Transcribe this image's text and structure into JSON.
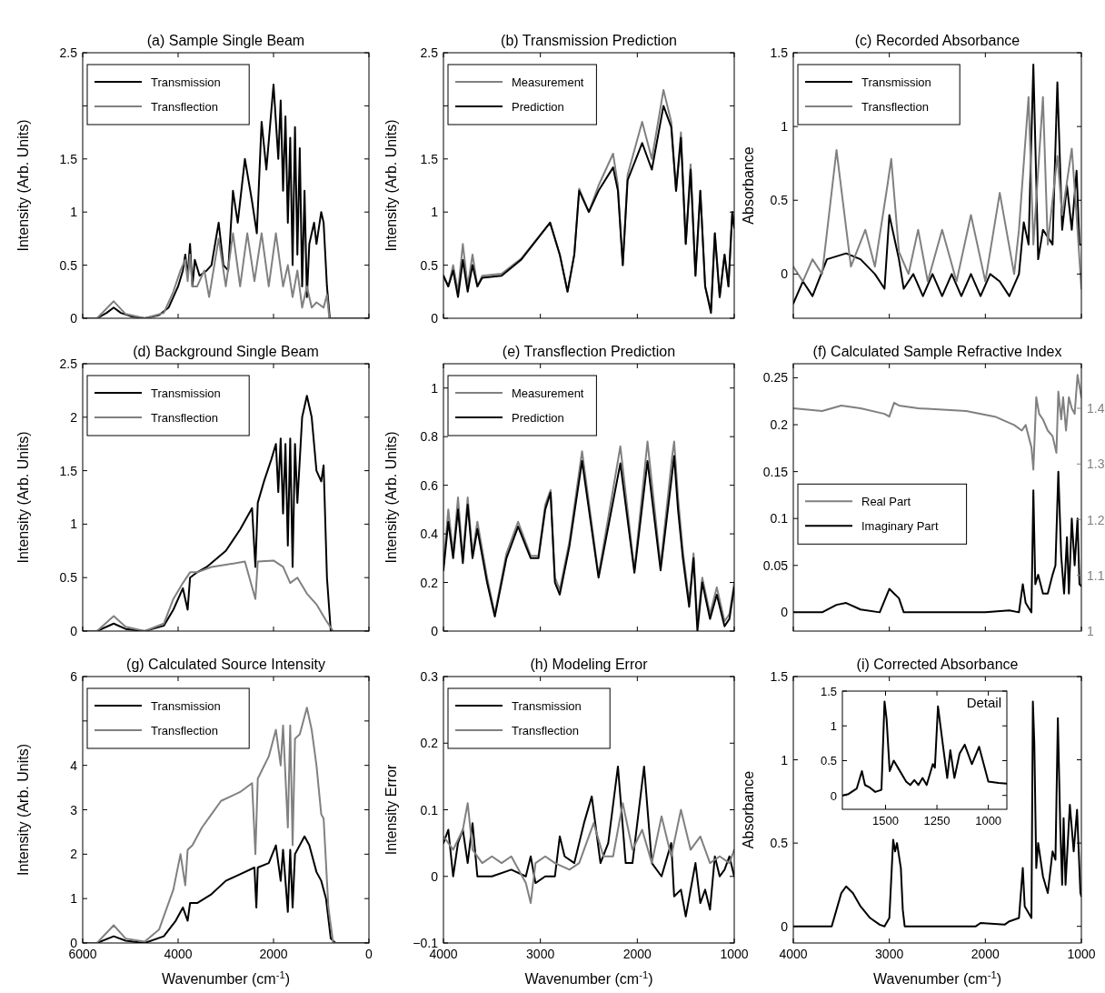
{
  "chart_data": [
    {
      "type": "line",
      "title": "(a) Sample Single Beam",
      "ylabel": "Intensity (Arb. Units)",
      "xlim": [
        6000,
        0
      ],
      "ylim": [
        0,
        2.5
      ],
      "xticks": [
        6000,
        4000,
        2000,
        0
      ],
      "yticks": [
        0,
        0.5,
        1,
        1.5,
        {
          "value": 2,
          "label": null
        },
        2.5
      ],
      "tick_labels": "y",
      "legend": "top left",
      "series": [
        {
          "name": "Transmission",
          "color": "#000000",
          "x": [
            6000,
            5700,
            5500,
            5350,
            5200,
            5000,
            4700,
            4400,
            4200,
            4000,
            3900,
            3850,
            3800,
            3750,
            3700,
            3650,
            3550,
            3400,
            3300,
            3150,
            3050,
            2950,
            2850,
            2750,
            2600,
            2450,
            2350,
            2250,
            2150,
            2000,
            1900,
            1850,
            1800,
            1750,
            1700,
            1650,
            1600,
            1550,
            1500,
            1450,
            1400,
            1350,
            1300,
            1250,
            1150,
            1100,
            1000,
            950,
            880,
            820,
            0
          ],
          "values": [
            0,
            0,
            0.05,
            0.1,
            0.05,
            0.02,
            0,
            0.03,
            0.1,
            0.3,
            0.45,
            0.6,
            0.4,
            0.7,
            0.3,
            0.55,
            0.4,
            0.45,
            0.5,
            0.9,
            0.5,
            0.45,
            1.2,
            0.9,
            1.5,
            1.1,
            0.8,
            1.85,
            1.4,
            2.2,
            1.5,
            2.05,
            1.2,
            1.9,
            0.9,
            1.7,
            0.5,
            1.8,
            0.6,
            1.6,
            0.3,
            1.2,
            0.2,
            0.7,
            0.9,
            0.7,
            1.0,
            0.9,
            0.3,
            0,
            0
          ]
        },
        {
          "name": "Transflection",
          "color": "#808080",
          "x": [
            6000,
            5700,
            5350,
            5100,
            4700,
            4300,
            4100,
            3950,
            3850,
            3800,
            3750,
            3700,
            3600,
            3450,
            3350,
            3150,
            3000,
            2850,
            2700,
            2550,
            2400,
            2250,
            2100,
            1950,
            1800,
            1700,
            1600,
            1500,
            1400,
            1300,
            1200,
            1100,
            950,
            880,
            830,
            0
          ],
          "values": [
            0,
            0,
            0.16,
            0.04,
            0,
            0.05,
            0.25,
            0.45,
            0.55,
            0.35,
            0.6,
            0.3,
            0.3,
            0.45,
            0.2,
            0.75,
            0.3,
            0.8,
            0.3,
            0.8,
            0.35,
            0.8,
            0.3,
            0.8,
            0.3,
            0.5,
            0.2,
            0.45,
            0.1,
            0.3,
            0.1,
            0.15,
            0.1,
            0.22,
            0,
            0
          ]
        }
      ]
    },
    {
      "type": "line",
      "title": "(b) Transmission Prediction",
      "ylabel": "Intensity (Arb. Units)",
      "xlim": [
        4000,
        1000
      ],
      "ylim": [
        0,
        2.5
      ],
      "xticks": [
        4000,
        3000,
        2000,
        1000
      ],
      "yticks": [
        0,
        0.5,
        1,
        1.5,
        {
          "value": 2,
          "label": null
        },
        2.5
      ],
      "tick_labels": "y",
      "legend": "top left",
      "series": [
        {
          "name": "Measurement",
          "color": "#808080",
          "x": [
            4000,
            3950,
            3900,
            3850,
            3800,
            3750,
            3700,
            3650,
            3600,
            3400,
            3200,
            2900,
            2800,
            2720,
            2650,
            2600,
            2500,
            2400,
            2250,
            2200,
            2150,
            2100,
            1950,
            1850,
            1730,
            1650,
            1600,
            1550,
            1500,
            1450,
            1400,
            1350,
            1300,
            1240,
            1200,
            1150,
            1100,
            1060,
            1020,
            1000
          ],
          "values": [
            0.4,
            0.3,
            0.5,
            0.25,
            0.7,
            0.3,
            0.6,
            0.3,
            0.4,
            0.42,
            0.56,
            0.9,
            0.6,
            0.25,
            0.6,
            1.22,
            1.0,
            1.25,
            1.55,
            1.25,
            0.5,
            1.35,
            1.85,
            1.5,
            2.15,
            1.85,
            1.2,
            1.75,
            0.7,
            1.45,
            0.4,
            1.2,
            0.3,
            0.08,
            0.8,
            0.2,
            0.6,
            0.3,
            1.0,
            0.85
          ]
        },
        {
          "name": "Prediction",
          "color": "#000000",
          "x": [
            4000,
            3950,
            3900,
            3850,
            3800,
            3750,
            3700,
            3650,
            3600,
            3400,
            3200,
            2900,
            2800,
            2720,
            2650,
            2600,
            2500,
            2400,
            2250,
            2200,
            2150,
            2100,
            1950,
            1850,
            1730,
            1650,
            1600,
            1550,
            1500,
            1450,
            1400,
            1350,
            1300,
            1240,
            1200,
            1150,
            1100,
            1060,
            1020,
            1000
          ],
          "values": [
            0.4,
            0.3,
            0.45,
            0.2,
            0.55,
            0.25,
            0.5,
            0.3,
            0.38,
            0.4,
            0.55,
            0.9,
            0.6,
            0.25,
            0.6,
            1.2,
            1.0,
            1.2,
            1.42,
            1.2,
            0.5,
            1.3,
            1.65,
            1.4,
            2.0,
            1.8,
            1.2,
            1.7,
            0.7,
            1.4,
            0.4,
            1.2,
            0.3,
            0.05,
            0.8,
            0.2,
            0.6,
            0.3,
            1.0,
            0.85
          ]
        }
      ]
    },
    {
      "type": "line",
      "title": "(c) Recorded Absorbance",
      "ylabel": "Absorbance",
      "xlim": [
        4000,
        1000
      ],
      "ylim": [
        -0.3,
        1.5
      ],
      "xticks": [
        4000,
        3000,
        2000,
        1000
      ],
      "yticks": [
        0,
        0.5,
        1,
        1.5
      ],
      "tick_labels": "y",
      "legend": "top left",
      "series": [
        {
          "name": "Transmission",
          "color": "#000000",
          "x": [
            4000,
            3900,
            3800,
            3650,
            3450,
            3300,
            3150,
            3050,
            3000,
            2950,
            2900,
            2850,
            2750,
            2650,
            2550,
            2450,
            2350,
            2250,
            2150,
            2050,
            1950,
            1850,
            1750,
            1650,
            1600,
            1550,
            1500,
            1450,
            1400,
            1300,
            1250,
            1200,
            1150,
            1100,
            1050,
            1020,
            1000
          ],
          "values": [
            -0.2,
            -0.05,
            -0.15,
            0.1,
            0.14,
            0.1,
            0.0,
            -0.1,
            0.4,
            0.25,
            0.1,
            -0.1,
            0.0,
            -0.15,
            0.0,
            -0.15,
            0.0,
            -0.15,
            0.0,
            -0.15,
            0.0,
            -0.05,
            -0.15,
            0.0,
            0.35,
            0.2,
            1.42,
            0.1,
            0.3,
            0.2,
            1.3,
            0.3,
            0.6,
            0.3,
            0.7,
            0.2,
            0.2
          ]
        },
        {
          "name": "Transflection",
          "color": "#808080",
          "x": [
            4000,
            3900,
            3800,
            3700,
            3550,
            3400,
            3250,
            3150,
            3020,
            2980,
            2900,
            2800,
            2700,
            2600,
            2450,
            2300,
            2150,
            2000,
            1850,
            1700,
            1650,
            1550,
            1500,
            1400,
            1350,
            1250,
            1200,
            1100,
            1050,
            1000
          ],
          "values": [
            0.05,
            -0.05,
            0.1,
            0.0,
            0.84,
            0.05,
            0.3,
            0.05,
            0.6,
            0.78,
            0.15,
            0.0,
            0.3,
            -0.05,
            0.3,
            -0.05,
            0.4,
            -0.05,
            0.55,
            0.0,
            0.3,
            1.2,
            0.2,
            1.2,
            0.2,
            0.8,
            0.4,
            0.85,
            0.4,
            -0.1
          ]
        }
      ]
    },
    {
      "type": "line",
      "title": "(d) Background Single Beam",
      "ylabel": "Intensity (Arb. Units)",
      "xlim": [
        6000,
        0
      ],
      "ylim": [
        0,
        2.5
      ],
      "xticks": [
        6000,
        4000,
        2000,
        0
      ],
      "yticks": [
        0,
        0.5,
        1,
        1.5,
        2,
        2.5
      ],
      "tick_labels": "y",
      "legend": "top left",
      "series": [
        {
          "name": "Transmission",
          "color": "#000000",
          "x": [
            6000,
            5700,
            5350,
            5100,
            4700,
            4300,
            4100,
            3900,
            3800,
            3750,
            3600,
            3400,
            3000,
            2700,
            2450,
            2380,
            2330,
            2200,
            2050,
            1950,
            1900,
            1850,
            1800,
            1750,
            1700,
            1650,
            1600,
            1550,
            1500,
            1400,
            1300,
            1200,
            1100,
            1000,
            950,
            880,
            800,
            0
          ],
          "values": [
            0,
            0,
            0.07,
            0.02,
            0,
            0.05,
            0.2,
            0.4,
            0.2,
            0.5,
            0.55,
            0.6,
            0.75,
            0.95,
            1.15,
            0.6,
            1.2,
            1.4,
            1.6,
            1.75,
            1.3,
            1.8,
            1.1,
            1.75,
            0.8,
            1.8,
            0.6,
            1.75,
            1.2,
            2.0,
            2.2,
            2.0,
            1.5,
            1.4,
            1.55,
            0.5,
            0,
            0
          ]
        },
        {
          "name": "Transflection",
          "color": "#808080",
          "x": [
            6000,
            5700,
            5350,
            5100,
            4700,
            4300,
            4100,
            3900,
            3750,
            3600,
            3300,
            3000,
            2600,
            2380,
            2330,
            2000,
            1800,
            1650,
            1500,
            1300,
            1100,
            900,
            750,
            0
          ],
          "values": [
            0,
            0,
            0.14,
            0.04,
            0,
            0.07,
            0.3,
            0.45,
            0.55,
            0.55,
            0.6,
            0.62,
            0.65,
            0.3,
            0.65,
            0.66,
            0.6,
            0.45,
            0.5,
            0.35,
            0.25,
            0.1,
            0,
            0
          ]
        }
      ]
    },
    {
      "type": "line",
      "title": "(e) Transflection Prediction",
      "ylabel": "Intensity (Arb. Units)",
      "xlim": [
        4000,
        1000
      ],
      "ylim": [
        0,
        1.1
      ],
      "xticks": [
        4000,
        3000,
        2000,
        1000
      ],
      "yticks": [
        0,
        0.2,
        0.4,
        0.6,
        0.8,
        1
      ],
      "tick_labels": "y",
      "legend": "top left",
      "series": [
        {
          "name": "Measurement",
          "color": "#808080",
          "x": [
            4000,
            3950,
            3900,
            3850,
            3800,
            3750,
            3700,
            3650,
            3550,
            3470,
            3350,
            3230,
            3100,
            3020,
            2950,
            2895,
            2850,
            2800,
            2700,
            2570,
            2400,
            2175,
            2030,
            1895,
            1760,
            1640,
            1620,
            1580,
            1530,
            1465,
            1420,
            1380,
            1330,
            1250,
            1180,
            1100,
            1050,
            1000
          ],
          "values": [
            0.27,
            0.5,
            0.32,
            0.55,
            0.3,
            0.55,
            0.32,
            0.45,
            0.22,
            0.07,
            0.32,
            0.45,
            0.31,
            0.31,
            0.52,
            0.58,
            0.22,
            0.17,
            0.37,
            0.74,
            0.23,
            0.76,
            0.25,
            0.78,
            0.27,
            0.72,
            0.78,
            0.55,
            0.33,
            0.12,
            0.32,
            0.03,
            0.22,
            0.07,
            0.18,
            0.04,
            0.07,
            0.2
          ]
        },
        {
          "name": "Prediction",
          "color": "#000000",
          "x": [
            4000,
            3950,
            3900,
            3850,
            3800,
            3750,
            3700,
            3650,
            3550,
            3470,
            3350,
            3230,
            3100,
            3020,
            2950,
            2895,
            2850,
            2800,
            2700,
            2570,
            2400,
            2175,
            2030,
            1895,
            1760,
            1640,
            1620,
            1580,
            1530,
            1465,
            1420,
            1380,
            1330,
            1250,
            1180,
            1100,
            1050,
            1000
          ],
          "values": [
            0.25,
            0.45,
            0.3,
            0.5,
            0.28,
            0.52,
            0.3,
            0.42,
            0.2,
            0.06,
            0.3,
            0.43,
            0.3,
            0.3,
            0.5,
            0.57,
            0.2,
            0.15,
            0.35,
            0.7,
            0.22,
            0.69,
            0.24,
            0.7,
            0.25,
            0.65,
            0.72,
            0.5,
            0.3,
            0.1,
            0.3,
            0.0,
            0.2,
            0.05,
            0.15,
            0.02,
            0.05,
            0.18
          ]
        }
      ]
    },
    {
      "type": "line",
      "title": "(f) Calculated Sample Refractive Index",
      "xlim": [
        4000,
        1000
      ],
      "ylim": [
        -0.02,
        0.265
      ],
      "y2lim": [
        1,
        1.48
      ],
      "xticks": [
        4000,
        3000,
        2000,
        1000
      ],
      "yticks": [
        0,
        0.05,
        0.1,
        0.15,
        0.2,
        0.25
      ],
      "y2ticks": [
        1,
        1.1,
        1.2,
        1.3,
        1.4
      ],
      "tick_labels": "y",
      "legend": "left",
      "series": [
        {
          "name": "Real Part",
          "color": "#808080",
          "axis": "y2",
          "x": [
            4000,
            3700,
            3500,
            3300,
            3050,
            3000,
            2950,
            2900,
            2700,
            2200,
            1900,
            1700,
            1620,
            1580,
            1520,
            1500,
            1470,
            1440,
            1400,
            1350,
            1300,
            1260,
            1240,
            1210,
            1190,
            1160,
            1130,
            1100,
            1070,
            1040,
            1000
          ],
          "values": [
            1.4,
            1.395,
            1.405,
            1.4,
            1.39,
            1.385,
            1.41,
            1.405,
            1.4,
            1.395,
            1.385,
            1.37,
            1.36,
            1.37,
            1.33,
            1.29,
            1.42,
            1.39,
            1.38,
            1.36,
            1.35,
            1.32,
            1.43,
            1.38,
            1.42,
            1.36,
            1.42,
            1.4,
            1.39,
            1.46,
            1.42
          ]
        },
        {
          "name": "Imaginary Part",
          "color": "#000000",
          "x": [
            4000,
            3700,
            3550,
            3450,
            3300,
            3100,
            3000,
            2950,
            2900,
            2850,
            2000,
            1750,
            1650,
            1610,
            1580,
            1520,
            1500,
            1480,
            1450,
            1400,
            1350,
            1300,
            1270,
            1240,
            1210,
            1180,
            1150,
            1130,
            1100,
            1070,
            1040,
            1020,
            1000
          ],
          "values": [
            0,
            0,
            0.008,
            0.01,
            0.003,
            0,
            0.025,
            0.02,
            0.015,
            0,
            0,
            0.002,
            0,
            0.03,
            0.01,
            0,
            0.13,
            0.03,
            0.04,
            0.02,
            0.02,
            0.04,
            0.05,
            0.15,
            0.06,
            0.02,
            0.08,
            0.02,
            0.1,
            0.05,
            0.1,
            0.03,
            0.028
          ]
        }
      ]
    },
    {
      "type": "line",
      "title": "(g) Calculated Source Intensity",
      "xlabel": "Wavenumber (cm$^{-1}$)",
      "ylabel": "Intensity (Arb. Units)",
      "xlim": [
        6000,
        0
      ],
      "ylim": [
        0,
        6
      ],
      "xticks": [
        6000,
        4000,
        2000,
        0
      ],
      "yticks": [
        0,
        1,
        2,
        3,
        4,
        {
          "value": 5,
          "label": null
        },
        6
      ],
      "legend": "top left",
      "series": [
        {
          "name": "Transmission",
          "color": "#000000",
          "x": [
            6000,
            5700,
            5350,
            5100,
            4700,
            4300,
            4050,
            3900,
            3800,
            3750,
            3600,
            3300,
            3000,
            2700,
            2400,
            2360,
            2330,
            2100,
            1950,
            1850,
            1800,
            1700,
            1650,
            1600,
            1550,
            1450,
            1350,
            1250,
            1100,
            1000,
            900,
            800,
            700,
            0
          ],
          "values": [
            0,
            0,
            0.15,
            0.05,
            0,
            0.15,
            0.5,
            0.8,
            0.5,
            0.9,
            0.9,
            1.1,
            1.4,
            1.55,
            1.7,
            0.8,
            1.7,
            1.8,
            2.2,
            1.4,
            2.1,
            0.7,
            2.1,
            0.8,
            2.0,
            2.2,
            2.4,
            2.2,
            1.6,
            1.4,
            1.0,
            0.1,
            0,
            0
          ]
        },
        {
          "name": "Transflection",
          "color": "#808080",
          "x": [
            6000,
            5700,
            5350,
            5100,
            4700,
            4400,
            4100,
            3950,
            3850,
            3800,
            3700,
            3500,
            3300,
            3100,
            2900,
            2700,
            2450,
            2380,
            2330,
            2100,
            1950,
            1850,
            1800,
            1700,
            1650,
            1600,
            1550,
            1450,
            1300,
            1200,
            1100,
            1000,
            950,
            850,
            750,
            0
          ],
          "values": [
            0,
            0,
            0.4,
            0.1,
            0.03,
            0.3,
            1.2,
            2.0,
            1.3,
            2.1,
            2.2,
            2.6,
            2.9,
            3.2,
            3.3,
            3.4,
            3.6,
            2.0,
            3.7,
            4.2,
            4.8,
            4.0,
            4.9,
            2.6,
            4.9,
            2.2,
            4.6,
            4.7,
            5.3,
            4.8,
            4.0,
            2.9,
            2.8,
            0.8,
            0,
            0
          ]
        }
      ]
    },
    {
      "type": "line",
      "title": "(h) Modeling Error",
      "xlabel": "Wavenumber (cm$^{-1}$)",
      "ylabel": "Intensity Error",
      "xlim": [
        4000,
        1000
      ],
      "ylim": [
        -0.1,
        0.3
      ],
      "xticks": [
        4000,
        3000,
        2000,
        1000
      ],
      "yticks": [
        {
          "value": -0.1,
          "label": "−0.1"
        },
        0,
        0.1,
        0.2,
        0.3
      ],
      "legend": "top left",
      "series": [
        {
          "name": "Transmission",
          "color": "#000000",
          "x": [
            4000,
            3950,
            3900,
            3850,
            3800,
            3750,
            3700,
            3650,
            3500,
            3300,
            3150,
            3100,
            3050,
            2950,
            2850,
            2800,
            2750,
            2650,
            2550,
            2470,
            2380,
            2300,
            2200,
            2120,
            2050,
            1930,
            1850,
            1750,
            1650,
            1620,
            1550,
            1500,
            1450,
            1400,
            1350,
            1300,
            1250,
            1200,
            1150,
            1100,
            1050,
            1000
          ],
          "values": [
            0.05,
            0.07,
            0.0,
            0.05,
            0.07,
            0.02,
            0.08,
            0.0,
            0.0,
            0.01,
            0.0,
            0.03,
            -0.01,
            0.0,
            0.0,
            0.06,
            0.03,
            0.02,
            0.08,
            0.12,
            0.02,
            0.05,
            0.165,
            0.02,
            0.02,
            0.165,
            0.02,
            0.0,
            0.05,
            -0.03,
            -0.02,
            -0.06,
            -0.02,
            0.02,
            -0.04,
            -0.02,
            -0.05,
            0.03,
            0.0,
            0.01,
            0.03,
            0.0
          ]
        },
        {
          "name": "Transflection",
          "color": "#808080",
          "x": [
            4000,
            3900,
            3800,
            3750,
            3700,
            3600,
            3500,
            3400,
            3300,
            3150,
            3100,
            3050,
            2950,
            2850,
            2700,
            2600,
            2450,
            2350,
            2250,
            2150,
            2050,
            1950,
            1850,
            1750,
            1650,
            1550,
            1450,
            1350,
            1250,
            1150,
            1050,
            1000
          ],
          "values": [
            0.06,
            0.04,
            0.07,
            0.11,
            0.04,
            0.02,
            0.03,
            0.02,
            0.03,
            -0.01,
            -0.04,
            0.02,
            0.03,
            0.02,
            0.01,
            0.02,
            0.08,
            0.03,
            0.03,
            0.11,
            0.04,
            0.07,
            0.02,
            0.09,
            0.03,
            0.1,
            0.04,
            0.06,
            0.02,
            0.03,
            0.02,
            0.04
          ]
        }
      ]
    },
    {
      "type": "line",
      "title": "(i) Corrected Absorbance",
      "xlabel": "Wavenumber (cm$^{-1}$)",
      "ylabel": "Absorbance",
      "xlim": [
        4000,
        1000
      ],
      "ylim": [
        -0.1,
        1.5
      ],
      "xticks": [
        4000,
        3000,
        2000,
        1000
      ],
      "yticks": [
        0,
        0.5,
        1,
        1.5
      ],
      "series": [
        {
          "color": "#000000",
          "x": [
            4000,
            3600,
            3550,
            3500,
            3450,
            3380,
            3300,
            3200,
            3100,
            3050,
            3000,
            2960,
            2940,
            2920,
            2880,
            2860,
            2840,
            2100,
            2050,
            1800,
            1750,
            1650,
            1610,
            1590,
            1550,
            1520,
            1505,
            1490,
            1470,
            1450,
            1400,
            1350,
            1300,
            1270,
            1245,
            1220,
            1200,
            1185,
            1165,
            1120,
            1080,
            1045,
            1010,
            1000
          ],
          "values": [
            0,
            0,
            0.1,
            0.2,
            0.24,
            0.2,
            0.12,
            0.05,
            0.01,
            0,
            0.05,
            0.52,
            0.45,
            0.5,
            0.35,
            0.1,
            0,
            0,
            0.02,
            0.01,
            0.03,
            0.05,
            0.35,
            0.12,
            0.08,
            0.05,
            1.35,
            1.1,
            0.35,
            0.5,
            0.3,
            0.2,
            0.45,
            0.4,
            1.25,
            0.6,
            0.25,
            0.65,
            0.25,
            0.73,
            0.45,
            0.7,
            0.2,
            0.18
          ]
        }
      ]
    },
    {
      "type": "line",
      "title": "Detail",
      "xlim": [
        1710,
        910
      ],
      "ylim": [
        -0.2,
        1.5
      ],
      "xticks": [
        1500,
        1250,
        1000
      ],
      "yticks": [
        0,
        0.5,
        1,
        1.5
      ],
      "series": [
        {
          "color": "#000000",
          "x": [
            1710,
            1680,
            1640,
            1615,
            1600,
            1580,
            1550,
            1520,
            1505,
            1495,
            1480,
            1460,
            1440,
            1400,
            1380,
            1360,
            1340,
            1320,
            1300,
            1270,
            1260,
            1245,
            1220,
            1200,
            1185,
            1165,
            1140,
            1115,
            1080,
            1045,
            1000,
            950,
            910
          ],
          "values": [
            0,
            0.02,
            0.1,
            0.35,
            0.15,
            0.12,
            0.05,
            0.08,
            1.35,
            1.1,
            0.35,
            0.5,
            0.4,
            0.2,
            0.15,
            0.22,
            0.15,
            0.25,
            0.15,
            0.45,
            0.4,
            1.28,
            0.7,
            0.25,
            0.65,
            0.25,
            0.6,
            0.73,
            0.45,
            0.7,
            0.2,
            0.18,
            0.17
          ]
        }
      ]
    }
  ]
}
